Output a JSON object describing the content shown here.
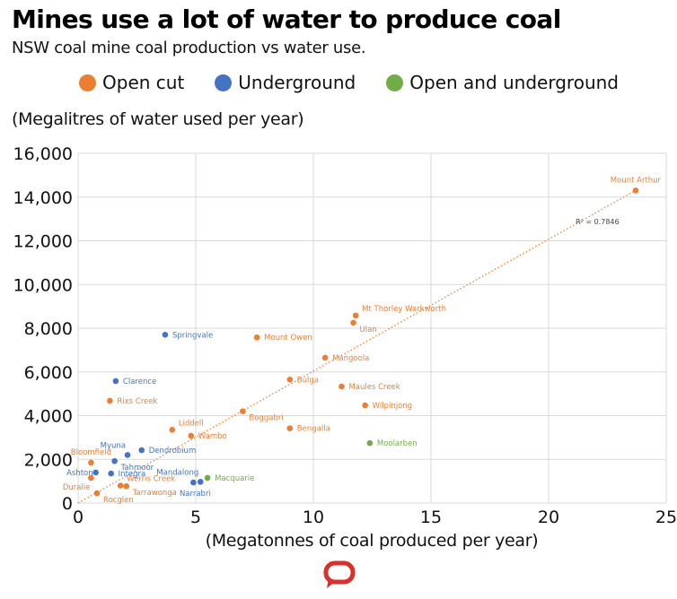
{
  "header": {
    "title": "Mines use a lot of water to produce coal",
    "subtitle": "NSW coal mine coal production vs water use."
  },
  "colors": {
    "open_cut": "#ED7D31",
    "underground": "#4472C4",
    "open_and_underground": "#70AD47",
    "gridline": "#d9d9d9",
    "logo": "#d6312b"
  },
  "chart_data": {
    "type": "scatter",
    "title": "Mines use a lot of water to produce coal",
    "subtitle": "NSW coal mine coal production vs water use.",
    "xlabel": "(Megatonnes of coal produced per year)",
    "ylabel": "(Megalitres of water used per year)",
    "xlim": [
      0,
      25
    ],
    "ylim": [
      0,
      16000
    ],
    "x_ticks": [
      0,
      5,
      10,
      15,
      20,
      25
    ],
    "x_tick_labels": [
      "0",
      "5",
      "10",
      "15",
      "20",
      "25"
    ],
    "y_ticks": [
      0,
      2000,
      4000,
      6000,
      8000,
      10000,
      12000,
      14000,
      16000
    ],
    "y_tick_labels": [
      "0",
      "2,000",
      "4,000",
      "6,000",
      "8,000",
      "10,000",
      "12,000",
      "14,000",
      "16,000"
    ],
    "grid": true,
    "legend_position": "top",
    "legend": [
      {
        "key": "open_cut",
        "label": "Open cut"
      },
      {
        "key": "underground",
        "label": "Underground"
      },
      {
        "key": "open_and_underground",
        "label": "Open and underground"
      }
    ],
    "trendline": {
      "type": "linear",
      "style": "dotted",
      "color_series": "open_cut",
      "x_range": [
        0,
        23.7
      ],
      "y_range": [
        0,
        14300
      ],
      "annotation": "R² = 0.7846",
      "annotation_at": [
        23.0,
        12750
      ]
    },
    "series": [
      {
        "name": "Open cut",
        "key": "open_cut",
        "points": [
          {
            "label": "Mount Arthur",
            "x": 23.7,
            "y": 14300,
            "anchor": "above"
          },
          {
            "label": "Mt Thorley Warkworth",
            "x": 11.8,
            "y": 8580,
            "anchor": "right-up"
          },
          {
            "label": "Ulan",
            "x": 11.7,
            "y": 8250,
            "anchor": "right-down"
          },
          {
            "label": "Mount Owen",
            "x": 7.6,
            "y": 7580,
            "anchor": "right"
          },
          {
            "label": "Mangoola",
            "x": 10.5,
            "y": 6650,
            "anchor": "right"
          },
          {
            "label": "Bulga",
            "x": 9.0,
            "y": 5650,
            "anchor": "right"
          },
          {
            "label": "Maules Creek",
            "x": 11.2,
            "y": 5330,
            "anchor": "right"
          },
          {
            "label": "Rixs Creek",
            "x": 1.35,
            "y": 4680,
            "anchor": "right"
          },
          {
            "label": "Wilpinjong",
            "x": 12.2,
            "y": 4470,
            "anchor": "right"
          },
          {
            "label": "Boggabri",
            "x": 7.0,
            "y": 4200,
            "anchor": "right-down"
          },
          {
            "label": "Bengalla",
            "x": 9.0,
            "y": 3420,
            "anchor": "right"
          },
          {
            "label": "Liddell",
            "x": 4.0,
            "y": 3350,
            "anchor": "right-up"
          },
          {
            "label": "Wambo",
            "x": 4.8,
            "y": 3080,
            "anchor": "right"
          },
          {
            "label": "Bloomfield",
            "x": 0.55,
            "y": 1850,
            "anchor": "above"
          },
          {
            "label": "Duralie",
            "x": 0.55,
            "y": 1150,
            "anchor": "below-left"
          },
          {
            "label": "Werris Creek",
            "x": 1.8,
            "y": 800,
            "anchor": "right-up"
          },
          {
            "label": "Tarrawonga",
            "x": 2.05,
            "y": 770,
            "anchor": "right-down"
          },
          {
            "label": "Rocglen",
            "x": 0.8,
            "y": 450,
            "anchor": "right-down"
          }
        ]
      },
      {
        "name": "Underground",
        "key": "underground",
        "points": [
          {
            "label": "Springvale",
            "x": 3.7,
            "y": 7700,
            "anchor": "right"
          },
          {
            "label": "Clarence",
            "x": 1.6,
            "y": 5580,
            "anchor": "right"
          },
          {
            "label": "Dendrobium",
            "x": 2.7,
            "y": 2420,
            "anchor": "right"
          },
          {
            "label": "Myuna",
            "x": 2.1,
            "y": 2200,
            "anchor": "above-left"
          },
          {
            "label": "Tahmoor",
            "x": 1.55,
            "y": 1920,
            "anchor": "right-down"
          },
          {
            "label": "Ashton",
            "x": 0.75,
            "y": 1400,
            "anchor": "left"
          },
          {
            "label": "Integra",
            "x": 1.4,
            "y": 1350,
            "anchor": "right"
          },
          {
            "label": "Mandalong",
            "x": 5.2,
            "y": 970,
            "anchor": "above-left"
          },
          {
            "label": "Narrabri",
            "x": 4.9,
            "y": 940,
            "anchor": "below"
          }
        ]
      },
      {
        "name": "Open and underground",
        "key": "open_and_underground",
        "points": [
          {
            "label": "Macquarie",
            "x": 5.5,
            "y": 1150,
            "anchor": "right"
          },
          {
            "label": "Moolarben",
            "x": 12.4,
            "y": 2740,
            "anchor": "right"
          }
        ]
      }
    ]
  },
  "logo": {
    "icon": "speech-bubble-icon"
  }
}
